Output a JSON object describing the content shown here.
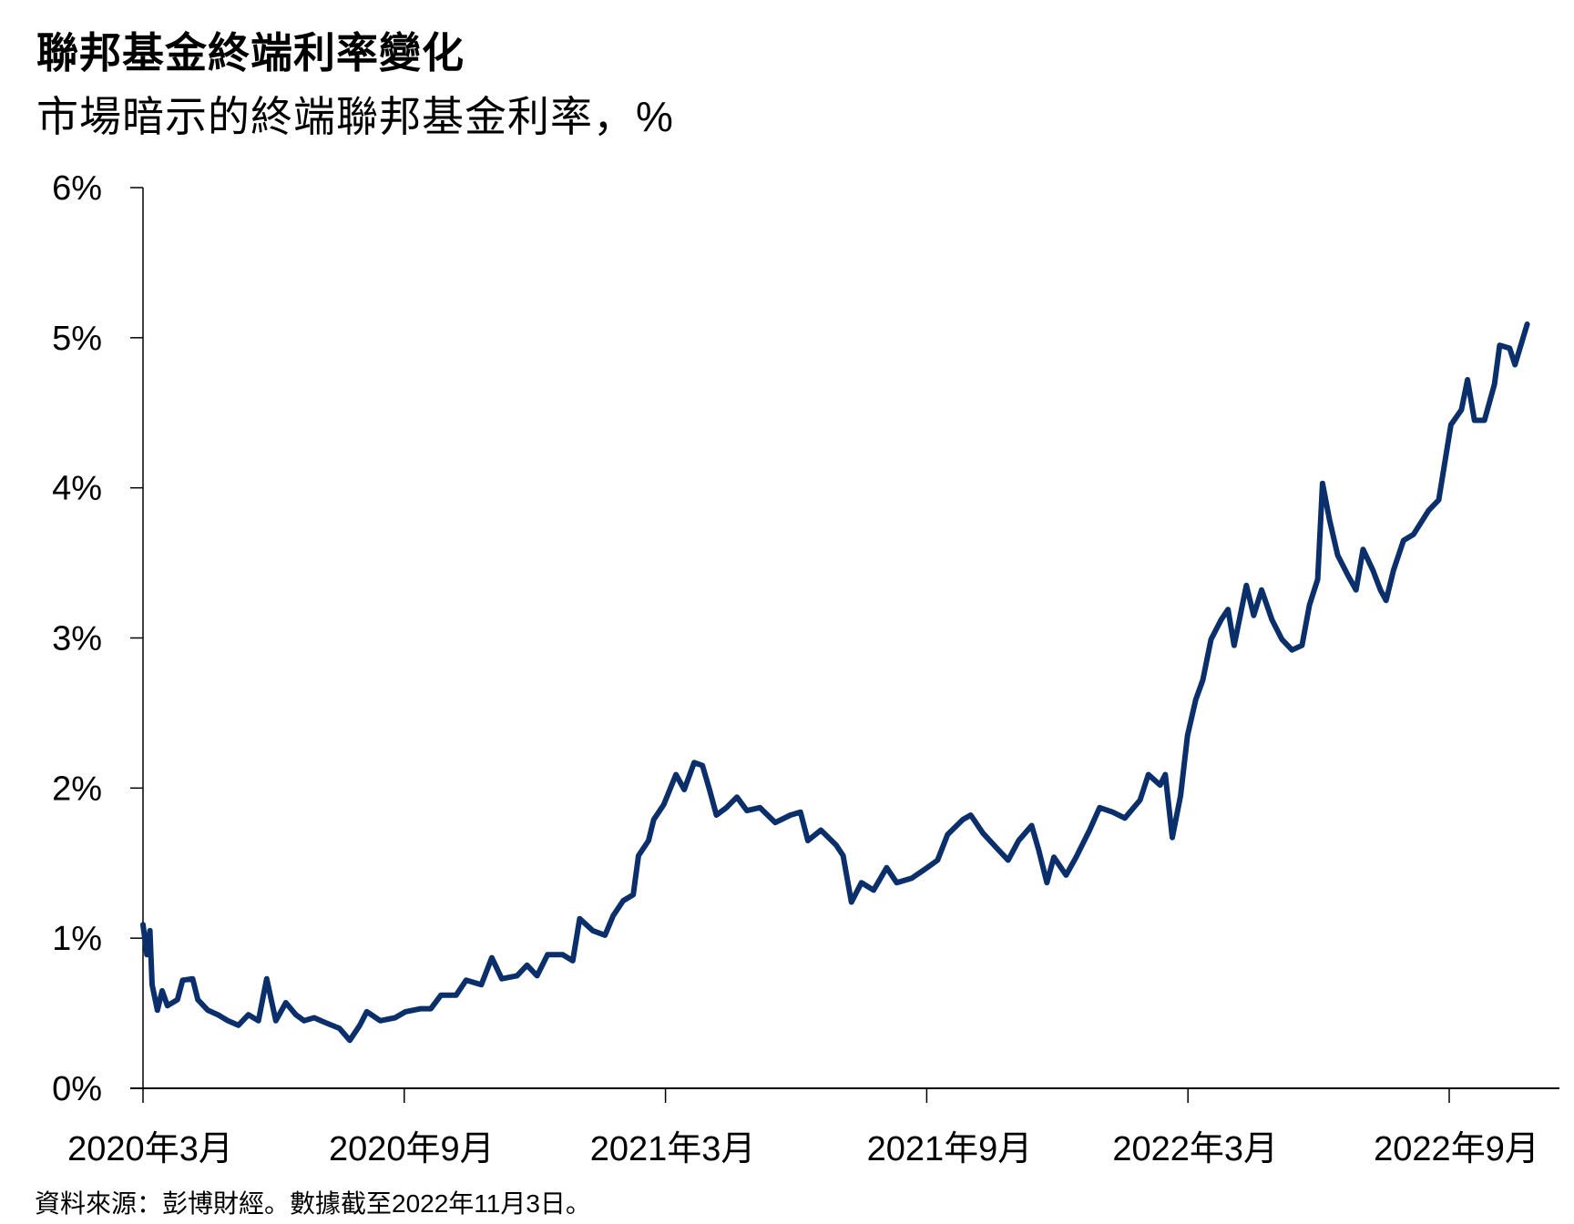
{
  "chart_data": {
    "type": "line",
    "title": "聯邦基金終端利率變化",
    "subtitle": "市場暗示的終端聯邦基金利率，%",
    "source": "資料來源：彭博財經。數據截至2022年11月3日。",
    "xlabel": "",
    "ylabel": "",
    "x_unit": "months since 2020-03-01",
    "xlim": [
      0,
      32
    ],
    "ylim": [
      0,
      6
    ],
    "y_ticks": [
      0,
      1,
      2,
      3,
      4,
      5,
      6
    ],
    "y_tick_labels": [
      "0%",
      "1%",
      "2%",
      "3%",
      "4%",
      "5%",
      "6%"
    ],
    "x_ticks": [
      0,
      6,
      12,
      18,
      24,
      30
    ],
    "x_tick_labels": [
      "2020年3月",
      "2020年9月",
      "2021年3月",
      "2021年9月",
      "2022年3月",
      "2022年9月"
    ],
    "grid": false,
    "line_color": "#0a2f6b",
    "series": [
      {
        "name": "市場暗示的終端聯邦基金利率",
        "x": [
          0,
          0.09,
          0.16,
          0.21,
          0.33,
          0.44,
          0.56,
          0.79,
          0.91,
          1.14,
          1.26,
          1.49,
          1.72,
          1.95,
          2.19,
          2.42,
          2.65,
          2.84,
          3.05,
          3.28,
          3.51,
          3.7,
          3.93,
          4.17,
          4.51,
          4.75,
          4.98,
          5.14,
          5.45,
          5.79,
          6.03,
          6.38,
          6.61,
          6.84,
          7.19,
          7.42,
          7.77,
          8.01,
          8.24,
          8.59,
          8.82,
          9.05,
          9.29,
          9.64,
          9.87,
          10.03,
          10.33,
          10.61,
          10.8,
          11.03,
          11.26,
          11.38,
          11.61,
          11.73,
          11.96,
          12.24,
          12.43,
          12.66,
          12.85,
          13.01,
          13.17,
          13.4,
          13.64,
          13.87,
          14.17,
          14.52,
          14.87,
          15.1,
          15.27,
          15.57,
          15.92,
          16.08,
          16.27,
          16.5,
          16.78,
          17.08,
          17.31,
          17.66,
          18.01,
          18.25,
          18.48,
          18.83,
          19.01,
          19.29,
          19.64,
          19.87,
          20.11,
          20.41,
          20.57,
          20.76,
          20.92,
          21.2,
          21.43,
          21.74,
          21.97,
          22.27,
          22.55,
          22.9,
          23.09,
          23.36,
          23.48,
          23.64,
          23.83,
          23.99,
          24.18,
          24.34,
          24.53,
          24.76,
          24.92,
          25.06,
          25.34,
          25.51,
          25.69,
          25.93,
          26.16,
          26.39,
          26.62,
          26.79,
          26.98,
          27.09,
          27.25,
          27.44,
          27.67,
          27.86,
          28.02,
          28.25,
          28.42,
          28.55,
          28.72,
          28.95,
          29.18,
          29.53,
          29.76,
          30.04,
          30.28,
          30.42,
          30.58,
          30.81,
          31.04,
          31.16,
          31.39,
          31.51,
          31.79
        ],
        "values": [
          1.09,
          0.89,
          1.05,
          0.69,
          0.52,
          0.65,
          0.55,
          0.59,
          0.72,
          0.73,
          0.59,
          0.52,
          0.49,
          0.45,
          0.42,
          0.49,
          0.45,
          0.73,
          0.45,
          0.57,
          0.49,
          0.45,
          0.47,
          0.44,
          0.4,
          0.32,
          0.42,
          0.51,
          0.45,
          0.47,
          0.51,
          0.53,
          0.53,
          0.62,
          0.62,
          0.72,
          0.69,
          0.87,
          0.73,
          0.75,
          0.82,
          0.75,
          0.89,
          0.89,
          0.85,
          1.13,
          1.05,
          1.02,
          1.15,
          1.25,
          1.29,
          1.55,
          1.65,
          1.79,
          1.89,
          2.09,
          1.99,
          2.17,
          2.15,
          1.99,
          1.82,
          1.87,
          1.94,
          1.85,
          1.87,
          1.77,
          1.82,
          1.84,
          1.65,
          1.72,
          1.62,
          1.55,
          1.24,
          1.37,
          1.32,
          1.47,
          1.37,
          1.4,
          1.47,
          1.52,
          1.69,
          1.79,
          1.82,
          1.7,
          1.59,
          1.52,
          1.65,
          1.75,
          1.59,
          1.37,
          1.54,
          1.42,
          1.54,
          1.72,
          1.87,
          1.84,
          1.8,
          1.92,
          2.09,
          2.02,
          2.09,
          1.67,
          1.95,
          2.35,
          2.59,
          2.72,
          2.99,
          3.12,
          3.19,
          2.95,
          3.35,
          3.15,
          3.32,
          3.12,
          2.99,
          2.92,
          2.95,
          3.22,
          3.39,
          4.03,
          3.79,
          3.55,
          3.42,
          3.32,
          3.59,
          3.45,
          3.32,
          3.25,
          3.45,
          3.65,
          3.69,
          3.85,
          3.92,
          4.42,
          4.52,
          4.72,
          4.45,
          4.45,
          4.69,
          4.95,
          4.93,
          4.82,
          5.09
        ]
      }
    ]
  }
}
